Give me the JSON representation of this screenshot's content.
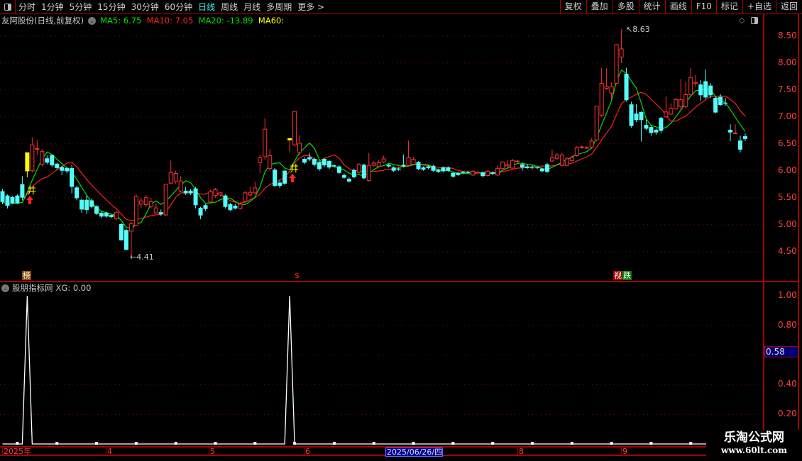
{
  "toolbar": {
    "periods": [
      "分时",
      "1分钟",
      "5分钟",
      "15分钟",
      "30分钟",
      "60分钟",
      "日线",
      "周线",
      "月线",
      "多周期",
      "更多 >"
    ],
    "active": "日线",
    "buttons": [
      "复权",
      "叠加",
      "多股",
      "统计",
      "画线",
      "F10",
      "标记",
      "+自选",
      "返回"
    ]
  },
  "info": {
    "title": "友阿股份(日线,前复权)",
    "ma5": "MA5: 6.75",
    "ma10": "MA10: 7.05",
    "ma20": "MA20: -13.89",
    "ma60": "MA60:"
  },
  "colors": {
    "up": "#ff3232",
    "down": "#54fcfc",
    "ma5": "#00e000",
    "ma10": "#ff2020",
    "ma20": "#00e000",
    "ma60": "#ffff00",
    "grid": "#8a0000"
  },
  "price_axis": {
    "labels": [
      "8.50",
      "8.00",
      "7.50",
      "7.00",
      "6.50",
      "6.00",
      "5.50",
      "5.00",
      "4.50"
    ]
  },
  "markers": {
    "max": "8.63",
    "min": "4.41",
    "bang": "榜",
    "dollar": "$",
    "tag1": "视",
    "tag2": "跌"
  },
  "sub": {
    "title": "股朋指标网",
    "xg": "XG: 0.00",
    "axis": [
      "1.00",
      "0.80",
      "0.40",
      "0.20"
    ],
    "current": "0.58"
  },
  "time_axis": {
    "labels": [
      "2025年",
      "4",
      "5",
      "6",
      "2025/06/26/四",
      "8",
      "9"
    ]
  },
  "watermark": {
    "name": "乐淘公式网",
    "url": "www.60lt.com"
  },
  "chart_data": {
    "type": "candlestick",
    "ylim": [
      4.3,
      8.7
    ],
    "highlight": [
      5
    ],
    "signal": [
      58
    ],
    "xg_peaks": [
      5,
      58
    ],
    "sub_ylim": [
      0,
      1
    ],
    "ohlc": [
      [
        5.62,
        5.66,
        5.38,
        5.42
      ],
      [
        5.54,
        5.56,
        5.3,
        5.35
      ],
      [
        5.51,
        5.53,
        5.38,
        5.4
      ],
      [
        5.54,
        5.56,
        5.38,
        5.4
      ],
      [
        5.75,
        5.9,
        5.45,
        5.5
      ],
      [
        5.99,
        6.34,
        5.88,
        6.34
      ],
      [
        6.0,
        6.62,
        5.97,
        6.48
      ],
      [
        6.41,
        6.57,
        6.3,
        6.41
      ],
      [
        6.12,
        6.4,
        6.08,
        6.36
      ],
      [
        6.23,
        6.28,
        6.12,
        6.15
      ],
      [
        6.29,
        6.3,
        6.07,
        6.1
      ],
      [
        6.13,
        6.15,
        6.02,
        6.05
      ],
      [
        6.07,
        6.09,
        5.92,
        6.0
      ],
      [
        6.05,
        6.07,
        5.95,
        5.99
      ],
      [
        6.05,
        6.1,
        5.58,
        5.7
      ],
      [
        5.69,
        5.72,
        5.45,
        5.49
      ],
      [
        5.46,
        5.48,
        5.22,
        5.28
      ],
      [
        5.46,
        5.54,
        5.2,
        5.27
      ],
      [
        5.45,
        5.48,
        5.3,
        5.33
      ],
      [
        5.34,
        5.36,
        5.18,
        5.2
      ],
      [
        5.22,
        5.24,
        5.12,
        5.15
      ],
      [
        5.22,
        5.24,
        5.13,
        5.15
      ],
      [
        5.18,
        5.19,
        5.12,
        5.14
      ],
      [
        5.11,
        5.25,
        5.08,
        5.23
      ],
      [
        5.01,
        5.03,
        4.7,
        4.71
      ],
      [
        4.9,
        4.92,
        4.53,
        4.53
      ],
      [
        4.88,
        5.05,
        4.41,
        5.02
      ],
      [
        4.99,
        5.57,
        4.98,
        5.52
      ],
      [
        5.38,
        5.5,
        5.3,
        5.44
      ],
      [
        5.37,
        5.55,
        5.33,
        5.5
      ],
      [
        5.34,
        5.5,
        5.3,
        5.43
      ],
      [
        5.22,
        5.4,
        5.2,
        5.31
      ],
      [
        5.23,
        5.28,
        5.16,
        5.19
      ],
      [
        5.18,
        5.75,
        5.16,
        5.75
      ],
      [
        5.77,
        6.19,
        5.75,
        5.97
      ],
      [
        5.8,
        6.0,
        5.76,
        5.95
      ],
      [
        5.62,
        5.9,
        5.6,
        5.81
      ],
      [
        5.63,
        5.7,
        5.55,
        5.58
      ],
      [
        5.63,
        5.66,
        5.55,
        5.58
      ],
      [
        5.67,
        5.7,
        5.3,
        5.36
      ],
      [
        5.31,
        5.33,
        5.1,
        5.17
      ],
      [
        5.36,
        5.38,
        5.25,
        5.29
      ],
      [
        5.42,
        5.65,
        5.4,
        5.61
      ],
      [
        5.54,
        5.68,
        5.5,
        5.65
      ],
      [
        5.55,
        5.6,
        5.52,
        5.59
      ],
      [
        5.54,
        5.56,
        5.3,
        5.33
      ],
      [
        5.38,
        5.4,
        5.25,
        5.27
      ],
      [
        5.35,
        5.38,
        5.28,
        5.3
      ],
      [
        5.3,
        5.42,
        5.28,
        5.38
      ],
      [
        5.43,
        5.62,
        5.4,
        5.59
      ],
      [
        5.55,
        5.7,
        5.52,
        5.6
      ],
      [
        5.59,
        5.8,
        5.56,
        5.68
      ],
      [
        6.15,
        6.3,
        5.95,
        6.24
      ],
      [
        6.26,
        6.97,
        6.2,
        6.77
      ],
      [
        6.04,
        6.4,
        6.0,
        6.28
      ],
      [
        6.02,
        6.05,
        5.7,
        5.72
      ],
      [
        5.78,
        5.82,
        5.68,
        5.72
      ],
      [
        6.0,
        6.02,
        5.74,
        5.76
      ],
      [
        6.59,
        6.59,
        6.34,
        6.59
      ],
      [
        6.48,
        7.1,
        6.45,
        7.1
      ],
      [
        6.34,
        6.66,
        6.3,
        6.51
      ],
      [
        6.22,
        6.25,
        6.12,
        6.15
      ],
      [
        6.25,
        6.33,
        6.18,
        6.21
      ],
      [
        6.22,
        6.24,
        6.08,
        6.11
      ],
      [
        6.16,
        6.18,
        6.0,
        6.03
      ],
      [
        6.22,
        6.24,
        6.06,
        6.1
      ],
      [
        6.18,
        6.2,
        6.03,
        6.06
      ],
      [
        6.1,
        6.12,
        6.06,
        6.08
      ],
      [
        6.08,
        6.1,
        5.94,
        5.96
      ],
      [
        5.92,
        5.95,
        5.85,
        5.87
      ],
      [
        5.85,
        5.88,
        5.78,
        5.8
      ],
      [
        6.01,
        6.04,
        5.86,
        5.88
      ],
      [
        5.97,
        6.14,
        5.94,
        6.12
      ],
      [
        6.11,
        6.13,
        5.84,
        5.86
      ],
      [
        5.82,
        6.33,
        5.8,
        6.1
      ],
      [
        6.1,
        6.18,
        6.08,
        6.14
      ],
      [
        6.08,
        6.2,
        6.06,
        6.15
      ],
      [
        6.16,
        6.28,
        6.14,
        6.22
      ],
      [
        6.11,
        6.13,
        6.06,
        6.08
      ],
      [
        6.06,
        6.08,
        5.98,
        6.0
      ],
      [
        6.04,
        6.06,
        6.0,
        6.02
      ],
      [
        6.11,
        6.3,
        6.06,
        6.08
      ],
      [
        6.1,
        6.56,
        6.08,
        6.24
      ],
      [
        6.12,
        6.25,
        6.1,
        6.21
      ],
      [
        6.16,
        6.18,
        6.01,
        6.03
      ],
      [
        6.06,
        6.08,
        6.0,
        6.02
      ],
      [
        6.08,
        6.1,
        6.03,
        6.05
      ],
      [
        6.09,
        6.11,
        5.98,
        6.0
      ],
      [
        6.02,
        6.04,
        5.96,
        5.98
      ],
      [
        6.06,
        6.08,
        5.97,
        5.99
      ],
      [
        6.06,
        6.08,
        5.98,
        6.0
      ],
      [
        5.96,
        5.98,
        5.87,
        5.89
      ],
      [
        5.96,
        5.98,
        5.9,
        5.92
      ],
      [
        5.98,
        6.0,
        5.94,
        5.96
      ],
      [
        5.98,
        6.0,
        5.94,
        5.96
      ],
      [
        5.92,
        6.01,
        5.9,
        5.99
      ],
      [
        5.96,
        5.99,
        5.94,
        5.97
      ],
      [
        5.97,
        5.99,
        5.88,
        5.9
      ],
      [
        5.91,
        6.01,
        5.89,
        5.99
      ],
      [
        5.97,
        5.99,
        5.92,
        5.94
      ],
      [
        5.92,
        6.1,
        5.9,
        6.04
      ],
      [
        6.04,
        6.18,
        6.02,
        6.16
      ],
      [
        6.09,
        6.2,
        6.05,
        6.11
      ],
      [
        6.05,
        6.22,
        6.03,
        6.19
      ],
      [
        6.17,
        6.2,
        6.15,
        6.18
      ],
      [
        6.12,
        6.14,
        6.0,
        6.06
      ],
      [
        6.08,
        6.12,
        6.03,
        6.05
      ],
      [
        6.06,
        6.1,
        6.03,
        6.05
      ],
      [
        6.06,
        6.08,
        6.03,
        6.05
      ],
      [
        6.04,
        6.06,
        5.97,
        5.99
      ],
      [
        6.12,
        6.15,
        5.96,
        5.98
      ],
      [
        6.18,
        6.39,
        6.16,
        6.24
      ],
      [
        6.23,
        6.33,
        6.2,
        6.29
      ],
      [
        6.1,
        6.33,
        6.08,
        6.29
      ],
      [
        6.1,
        6.25,
        6.08,
        6.22
      ],
      [
        6.19,
        6.28,
        6.17,
        6.25
      ],
      [
        6.28,
        6.46,
        6.26,
        6.43
      ],
      [
        6.43,
        6.47,
        6.41,
        6.44
      ],
      [
        6.43,
        6.45,
        6.41,
        6.43
      ],
      [
        6.44,
        6.6,
        6.42,
        6.55
      ],
      [
        6.57,
        7.2,
        6.55,
        7.2
      ],
      [
        7.03,
        7.91,
        7.0,
        7.62
      ],
      [
        7.53,
        7.9,
        7.5,
        7.56
      ],
      [
        7.44,
        7.64,
        7.3,
        7.56
      ],
      [
        7.62,
        8.34,
        7.6,
        8.34
      ],
      [
        8.11,
        8.63,
        8.0,
        8.26
      ],
      [
        7.8,
        7.91,
        7.28,
        7.31
      ],
      [
        7.23,
        7.28,
        6.8,
        6.83
      ],
      [
        7.06,
        7.23,
        6.9,
        6.94
      ],
      [
        7.09,
        7.1,
        6.54,
        6.94
      ],
      [
        6.85,
        6.95,
        6.75,
        6.78
      ],
      [
        6.81,
        6.85,
        6.65,
        6.7
      ],
      [
        6.76,
        6.78,
        6.67,
        6.71
      ],
      [
        6.98,
        7.0,
        6.7,
        6.74
      ],
      [
        7.0,
        7.38,
        6.98,
        7.09
      ],
      [
        7.05,
        7.25,
        7.03,
        7.15
      ],
      [
        7.15,
        7.35,
        7.12,
        7.32
      ],
      [
        7.19,
        7.7,
        7.1,
        7.32
      ],
      [
        7.19,
        7.65,
        7.15,
        7.41
      ],
      [
        7.41,
        7.91,
        7.38,
        7.73
      ],
      [
        7.62,
        7.78,
        7.55,
        7.64
      ],
      [
        7.6,
        7.68,
        7.3,
        7.4
      ],
      [
        7.66,
        7.88,
        7.33,
        7.36
      ],
      [
        7.58,
        7.63,
        7.35,
        7.4
      ],
      [
        7.35,
        7.38,
        7.06,
        7.08
      ],
      [
        7.37,
        7.42,
        7.2,
        7.22
      ],
      [
        7.26,
        7.35,
        7.2,
        7.25
      ],
      [
        6.76,
        6.86,
        6.55,
        6.71
      ],
      [
        6.7,
        6.86,
        6.7,
        6.7
      ],
      [
        6.56,
        6.65,
        6.34,
        6.39
      ],
      [
        6.64,
        6.69,
        6.55,
        6.59
      ]
    ]
  }
}
